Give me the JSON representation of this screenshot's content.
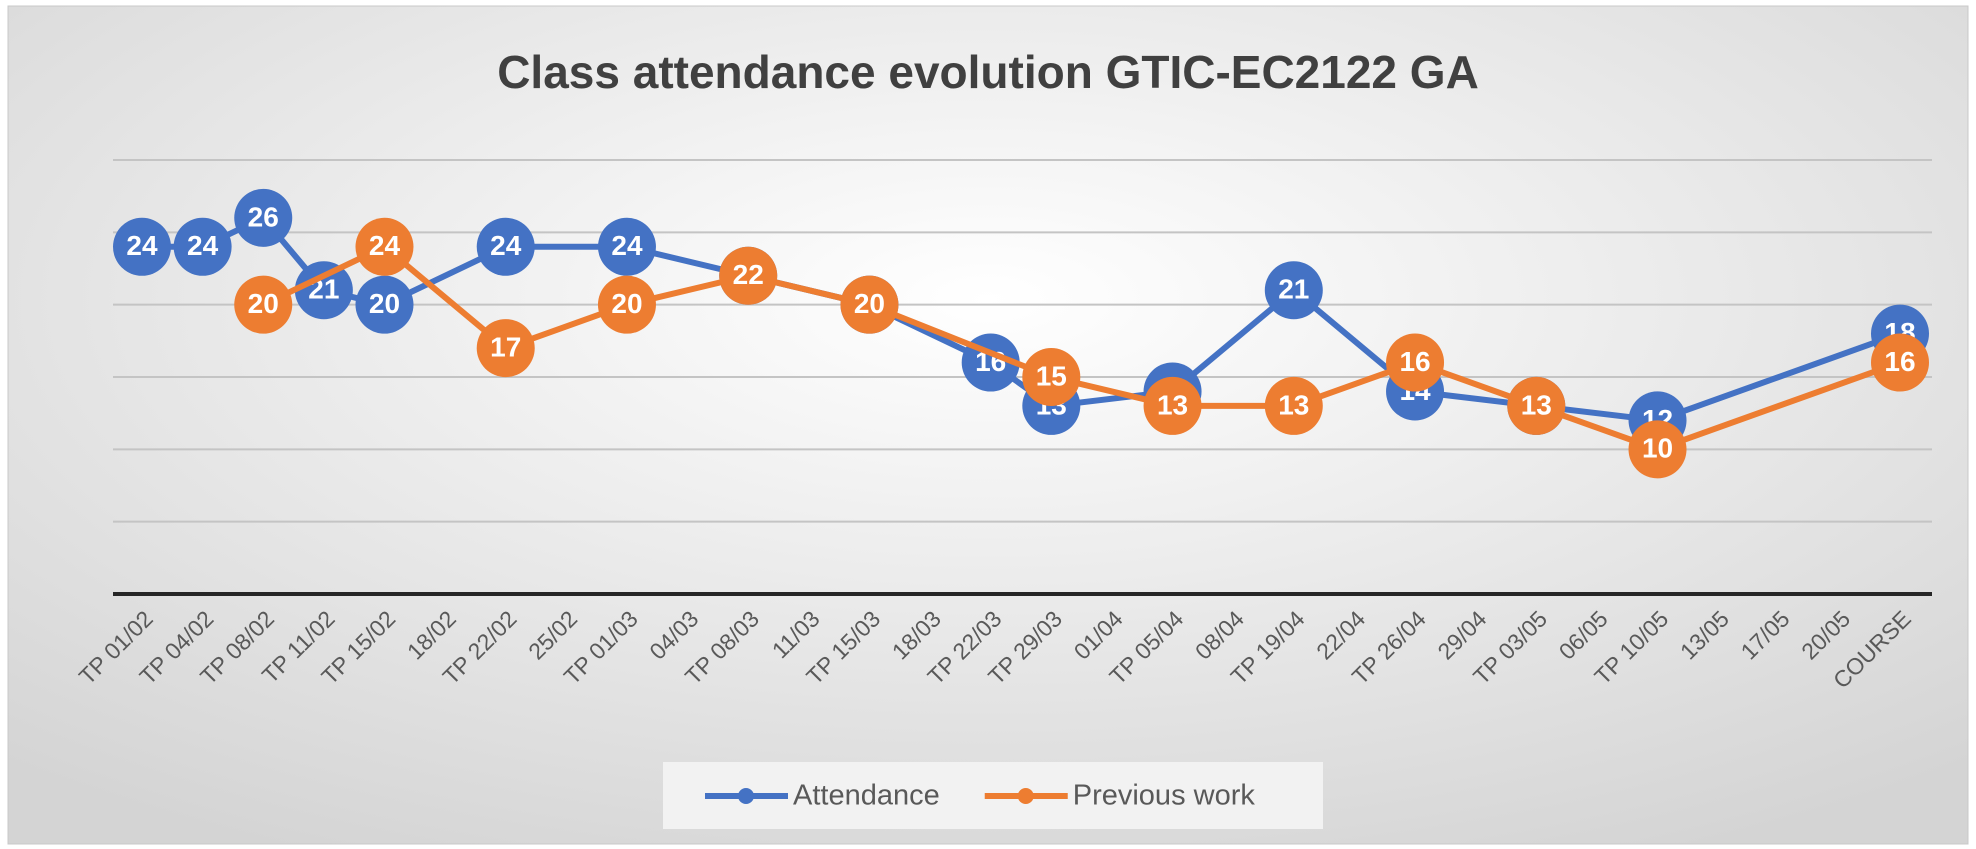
{
  "chart_data": {
    "type": "line",
    "title": "Class attendance evolution GTIC-EC2122 GA",
    "categories": [
      "TP 01/02",
      "TP 04/02",
      "TP 08/02",
      "TP 11/02",
      "TP 15/02",
      "18/02",
      "TP 22/02",
      "25/02",
      "TP 01/03",
      "04/03",
      "TP 08/03",
      "11/03",
      "TP 15/03",
      "18/03",
      "TP 22/03",
      "TP 29/03",
      "01/04",
      "TP 05/04",
      "08/04",
      "TP 19/04",
      "22/04",
      "TP 26/04",
      "29/04",
      "TP 03/05",
      "06/05",
      "TP 10/05",
      "13/05",
      "17/05",
      "20/05",
      "COURSE"
    ],
    "series": [
      {
        "name": "Attendance",
        "color": "#4472c4",
        "values": [
          24,
          24,
          26,
          21,
          20,
          null,
          24,
          null,
          24,
          null,
          22,
          null,
          20,
          null,
          16,
          13,
          null,
          14,
          null,
          21,
          null,
          14,
          null,
          13,
          null,
          12,
          null,
          null,
          null,
          18
        ]
      },
      {
        "name": "Previous work",
        "color": "#ed7d31",
        "values": [
          null,
          null,
          20,
          null,
          24,
          null,
          17,
          null,
          20,
          null,
          22,
          null,
          20,
          null,
          null,
          15,
          null,
          13,
          null,
          13,
          null,
          16,
          null,
          13,
          null,
          10,
          null,
          null,
          null,
          16
        ]
      }
    ],
    "ylim": [
      0,
      30
    ],
    "yticks": [
      0,
      5,
      10,
      15,
      20,
      25,
      30
    ],
    "grid": true,
    "legend": "bottom"
  }
}
